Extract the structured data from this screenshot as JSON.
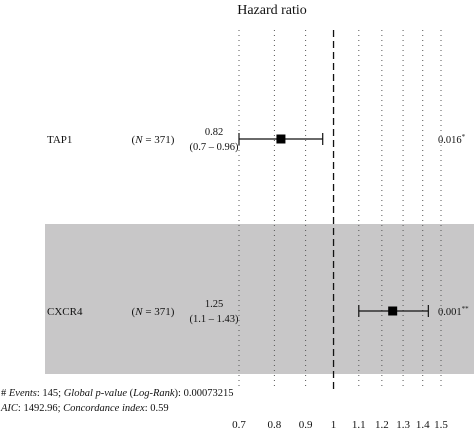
{
  "chart_data": {
    "type": "forest",
    "title": "Hazard ratio",
    "x_scale": "log",
    "xlim": [
      0.7,
      1.5
    ],
    "reference_line": 1,
    "x_ticks": [
      {
        "value": 0.7,
        "label": "0.7"
      },
      {
        "value": 0.8,
        "label": "0.8"
      },
      {
        "value": 0.9,
        "label": "0.9"
      },
      {
        "value": 1.0,
        "label": "1"
      },
      {
        "value": 1.1,
        "label": "1.1"
      },
      {
        "value": 1.2,
        "label": "1.2"
      },
      {
        "value": 1.3,
        "label": "1.3"
      },
      {
        "value": 1.4,
        "label": "1.4"
      },
      {
        "value": 1.5,
        "label": "1.5"
      }
    ],
    "rows": [
      {
        "name": "TAP1",
        "n_label": "(N = 371)",
        "hr": 0.82,
        "lower": 0.7,
        "upper": 0.96,
        "hr_label": "0.82",
        "ci_label": "(0.7 – 0.96)",
        "p_label": "0.016",
        "stars": "*",
        "shaded": false
      },
      {
        "name": "CXCR4",
        "n_label": "(N = 371)",
        "hr": 1.25,
        "lower": 1.1,
        "upper": 1.43,
        "hr_label": "1.25",
        "ci_label": "(1.1 – 1.43)",
        "p_label": "0.001",
        "stars": "**",
        "shaded": true
      }
    ],
    "footer_line1": "# Events: 145; Global p-value (Log-Rank): 0.00073215",
    "footer_line2": "AIC: 1492.96; Concordance index: 0.59",
    "colors": {
      "shade": "#c8c7c8",
      "line": "#111111",
      "grid": "#555555",
      "point": "#000000"
    }
  }
}
